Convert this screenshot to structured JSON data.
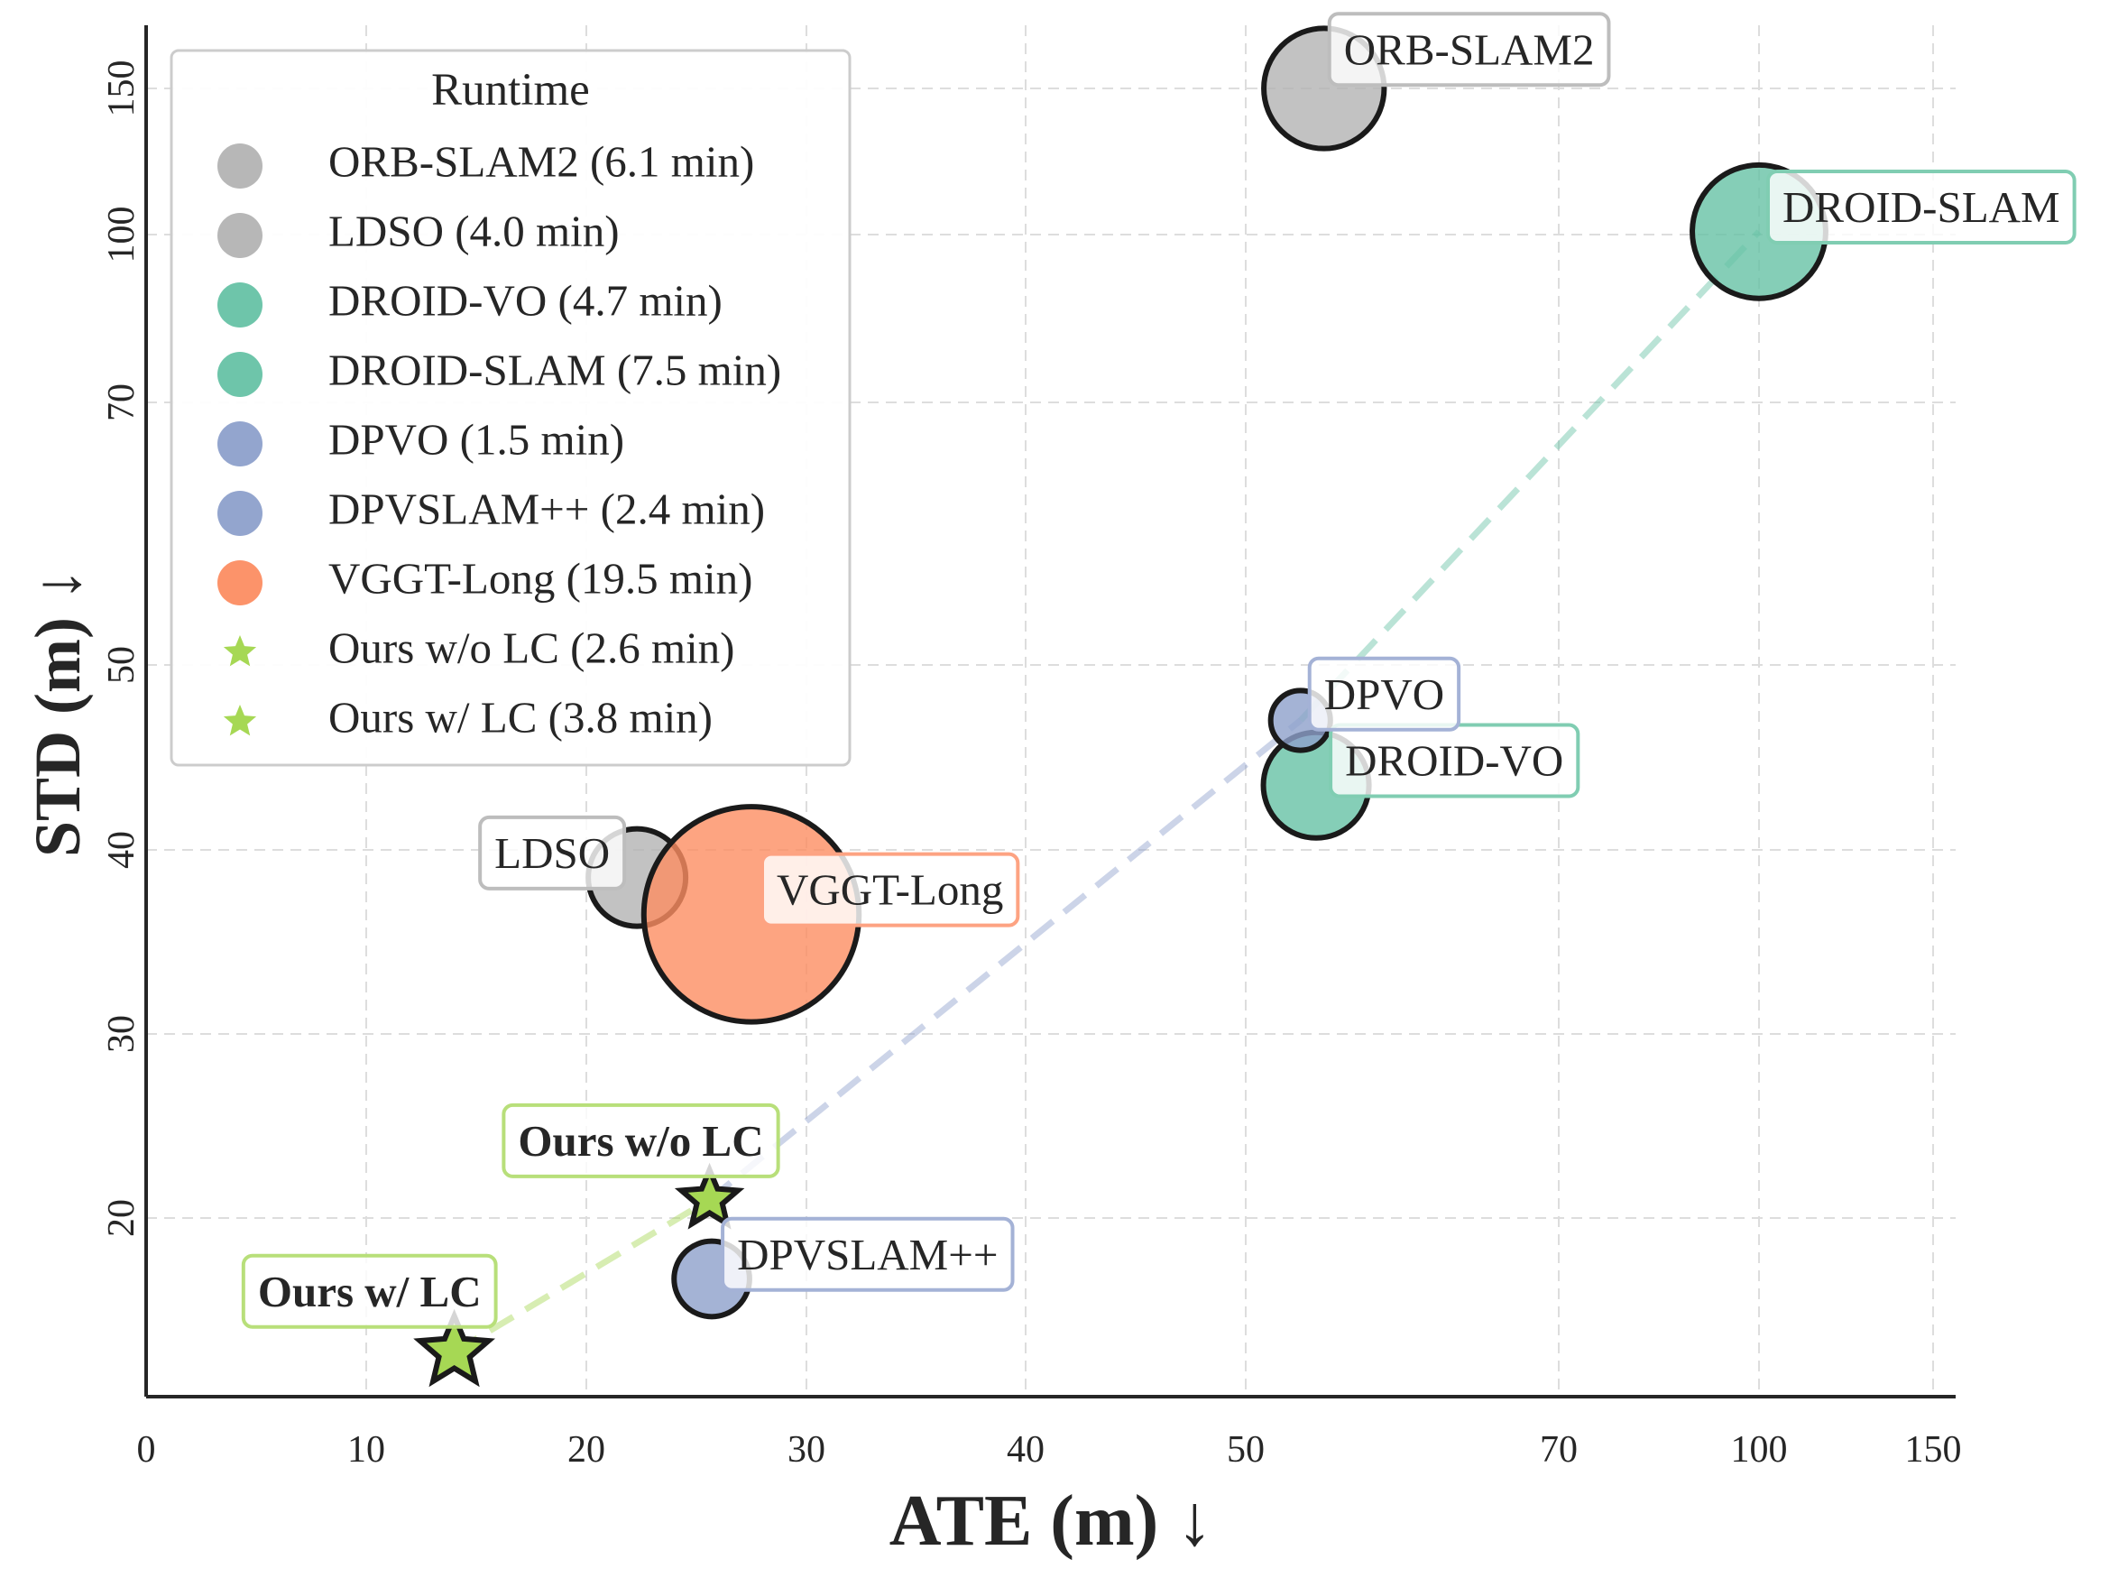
{
  "chart_data": {
    "type": "scatter",
    "xlabel": "ATE (m) ↓",
    "ylabel": "STD (m) ↓",
    "x_ticks": [
      "0",
      "10",
      "20",
      "30",
      "40",
      "50",
      "70",
      "100",
      "150"
    ],
    "y_ticks": [
      "20",
      "30",
      "40",
      "50",
      "70",
      "100",
      "150"
    ],
    "grid": true,
    "legend": {
      "title": "Runtime",
      "position": "top-left"
    },
    "series": [
      {
        "name": "ORB-SLAM2",
        "legend": "ORB-SLAM2 (6.1 min)",
        "ate": 55,
        "std": 150,
        "runtime_min": 6.1,
        "marker": "circle",
        "color": "#b3b3b3",
        "label_color": "#bdbdbd"
      },
      {
        "name": "LDSO",
        "legend": "LDSO (4.0 min)",
        "ate": 22.3,
        "std": 38.5,
        "runtime_min": 4.0,
        "marker": "circle",
        "color": "#b3b3b3",
        "label_color": "#bdbdbd"
      },
      {
        "name": "DROID-VO",
        "legend": "DROID-VO (4.7 min)",
        "ate": 54.5,
        "std": 43.5,
        "runtime_min": 4.7,
        "marker": "circle",
        "color": "#66c2a5",
        "label_color": "#80cdb2"
      },
      {
        "name": "DROID-SLAM",
        "legend": "DROID-SLAM (7.5 min)",
        "ate": 100,
        "std": 101,
        "runtime_min": 7.5,
        "marker": "circle",
        "color": "#66c2a5",
        "label_color": "#80cdb2"
      },
      {
        "name": "DPVO",
        "legend": "DPVO (1.5 min)",
        "ate": 53.5,
        "std": 47,
        "runtime_min": 1.5,
        "marker": "circle",
        "color": "#8da0cb",
        "label_color": "#a4b2d6"
      },
      {
        "name": "DPVSLAM++",
        "legend": "DPVSLAM++ (2.4 min)",
        "ate": 25.7,
        "std": 17.5,
        "runtime_min": 2.4,
        "marker": "circle",
        "color": "#8da0cb",
        "label_color": "#a4b2d6"
      },
      {
        "name": "VGGT-Long",
        "legend": "VGGT-Long (19.5 min)",
        "ate": 27.5,
        "std": 36.5,
        "runtime_min": 19.5,
        "marker": "circle",
        "color": "#fc8d62",
        "label_color": "#fda382"
      },
      {
        "name": "Ours w/o LC",
        "legend": "Ours w/o LC (2.6 min)",
        "ate": 25.6,
        "std": 21,
        "runtime_min": 2.6,
        "marker": "star",
        "color": "#a6d854",
        "label_color": "#b8df7a",
        "bold_label": true
      },
      {
        "name": "Ours w/ LC",
        "legend": "Ours w/ LC (3.8 min)",
        "ate": 14,
        "std": 14.5,
        "runtime_min": 3.8,
        "marker": "star",
        "color": "#a6d854",
        "label_color": "#b8df7a",
        "bold_label": true
      }
    ],
    "connections": [
      {
        "from": "Ours w/ LC",
        "to": "Ours w/o LC",
        "color": "#a6d854"
      },
      {
        "from": "Ours w/o LC",
        "to": "DPVO",
        "color": "#8da0cb"
      },
      {
        "from": "DPVO",
        "to": "DROID-SLAM",
        "color": "#66c2a5"
      }
    ]
  }
}
